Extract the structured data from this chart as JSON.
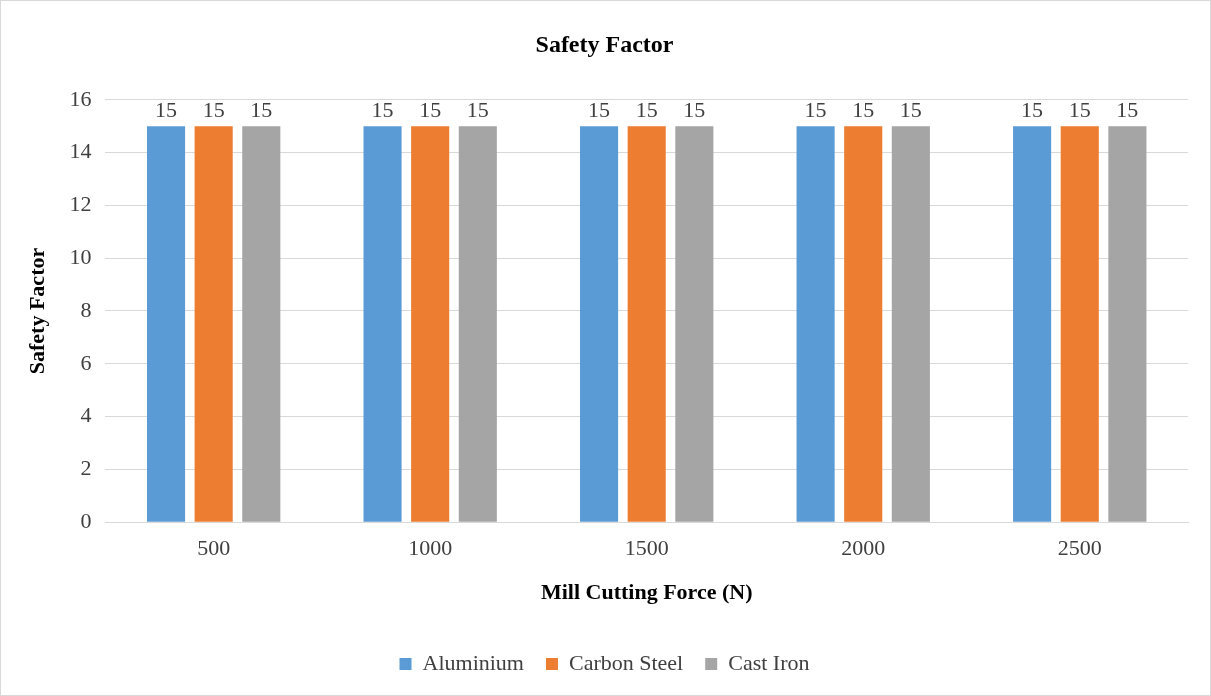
{
  "chart_data": {
    "type": "bar",
    "title": "Safety Factor",
    "xlabel": "Mill Cutting Force (N)",
    "ylabel": "Safety Factor",
    "categories": [
      "500",
      "1000",
      "1500",
      "2000",
      "2500"
    ],
    "series": [
      {
        "name": "Aluminium",
        "color": "#5b9bd5",
        "values": [
          15,
          15,
          15,
          15,
          15
        ]
      },
      {
        "name": "Carbon Steel",
        "color": "#ed7d31",
        "values": [
          15,
          15,
          15,
          15,
          15
        ]
      },
      {
        "name": "Cast Iron",
        "color": "#a5a5a5",
        "values": [
          15,
          15,
          15,
          15,
          15
        ]
      }
    ],
    "ylim": [
      0,
      16
    ],
    "yticks": [
      0,
      2,
      4,
      6,
      8,
      10,
      12,
      14,
      16
    ],
    "grid": "y",
    "legend": "bottom",
    "data_labels": true
  }
}
